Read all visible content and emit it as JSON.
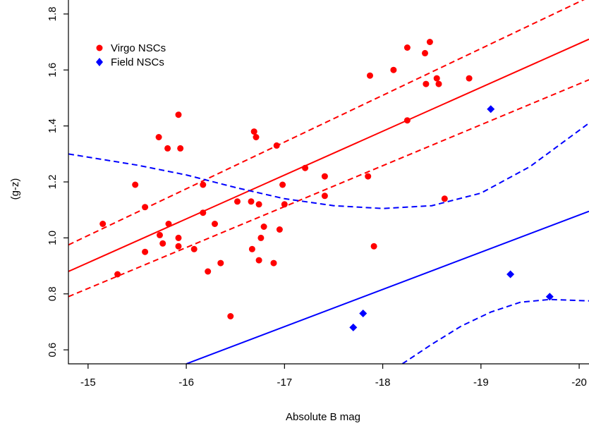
{
  "chart_data": {
    "type": "scatter",
    "title": "",
    "xlabel": "Absolute B mag",
    "ylabel": "(g-z)",
    "xlim": [
      -14.8,
      -20.1
    ],
    "ylim": [
      0.55,
      1.85
    ],
    "x_reversed": true,
    "xticks": [
      -15,
      -16,
      -17,
      -18,
      -19,
      -20
    ],
    "yticks": [
      0.6,
      0.8,
      1.0,
      1.2,
      1.4,
      1.6,
      1.8
    ],
    "xtick_labels": [
      "-15",
      "-16",
      "-17",
      "-18",
      "-19",
      "-20"
    ],
    "ytick_labels": [
      "0.6",
      "0.8",
      "1.0",
      "1.2",
      "1.4",
      "1.6",
      "1.8"
    ],
    "grid": false,
    "legend_position": "top-left",
    "series": [
      {
        "name": "Virgo NSCs",
        "marker": "circle",
        "color": "#ff0000",
        "points": [
          [
            -15.15,
            1.05
          ],
          [
            -15.3,
            0.87
          ],
          [
            -15.48,
            1.19
          ],
          [
            -15.58,
            1.11
          ],
          [
            -15.58,
            0.95
          ],
          [
            -15.72,
            1.36
          ],
          [
            -15.73,
            1.01
          ],
          [
            -15.76,
            0.98
          ],
          [
            -15.81,
            1.32
          ],
          [
            -15.82,
            1.05
          ],
          [
            -15.92,
            1.44
          ],
          [
            -15.94,
            1.32
          ],
          [
            -15.92,
            1.0
          ],
          [
            -15.92,
            0.97
          ],
          [
            -16.08,
            0.96
          ],
          [
            -16.17,
            1.19
          ],
          [
            -16.17,
            1.09
          ],
          [
            -16.22,
            0.88
          ],
          [
            -16.29,
            1.05
          ],
          [
            -16.35,
            0.91
          ],
          [
            -16.45,
            0.72
          ],
          [
            -16.52,
            1.13
          ],
          [
            -16.66,
            1.13
          ],
          [
            -16.67,
            0.96
          ],
          [
            -16.69,
            1.38
          ],
          [
            -16.71,
            1.36
          ],
          [
            -16.74,
            1.12
          ],
          [
            -16.74,
            0.92
          ],
          [
            -16.76,
            1.0
          ],
          [
            -16.79,
            1.04
          ],
          [
            -16.89,
            0.91
          ],
          [
            -16.92,
            1.33
          ],
          [
            -16.95,
            1.03
          ],
          [
            -16.98,
            1.19
          ],
          [
            -17.0,
            1.12
          ],
          [
            -17.21,
            1.25
          ],
          [
            -17.41,
            1.22
          ],
          [
            -17.41,
            1.15
          ],
          [
            -17.85,
            1.22
          ],
          [
            -17.87,
            1.58
          ],
          [
            -17.91,
            0.97
          ],
          [
            -18.11,
            1.6
          ],
          [
            -18.25,
            1.68
          ],
          [
            -18.25,
            1.42
          ],
          [
            -18.43,
            1.66
          ],
          [
            -18.44,
            1.55
          ],
          [
            -18.48,
            1.7
          ],
          [
            -18.55,
            1.57
          ],
          [
            -18.57,
            1.55
          ],
          [
            -18.63,
            1.14
          ],
          [
            -18.88,
            1.57
          ]
        ]
      },
      {
        "name": "Field NSCs",
        "marker": "diamond",
        "color": "#0000ff",
        "points": [
          [
            -17.7,
            0.68
          ],
          [
            -17.8,
            0.73
          ],
          [
            -19.1,
            1.46
          ],
          [
            -19.3,
            0.87
          ],
          [
            -19.7,
            0.79
          ]
        ]
      }
    ],
    "fit_lines": [
      {
        "series": "Virgo NSCs",
        "role": "fit",
        "style": "solid",
        "color": "#ff0000",
        "points": [
          [
            -14.8,
            0.88
          ],
          [
            -20.1,
            1.71
          ]
        ]
      },
      {
        "series": "Virgo NSCs",
        "role": "upper-bound",
        "style": "dashed",
        "color": "#ff0000",
        "points": [
          [
            -14.8,
            0.975
          ],
          [
            -20.1,
            1.86
          ]
        ]
      },
      {
        "series": "Virgo NSCs",
        "role": "lower-bound",
        "style": "dashed",
        "color": "#ff0000",
        "points": [
          [
            -14.8,
            0.79
          ],
          [
            -20.1,
            1.565
          ]
        ]
      },
      {
        "series": "Field NSCs",
        "role": "fit",
        "style": "solid",
        "color": "#0000ff",
        "points": [
          [
            -16.0,
            0.55
          ],
          [
            -20.1,
            1.095
          ]
        ]
      },
      {
        "series": "Field NSCs",
        "role": "upper-bound",
        "style": "dashed",
        "color": "#0000ff",
        "points": [
          [
            -14.8,
            1.3
          ],
          [
            -15.5,
            1.26
          ],
          [
            -16.0,
            1.225
          ],
          [
            -16.5,
            1.18
          ],
          [
            -17.0,
            1.14
          ],
          [
            -17.5,
            1.115
          ],
          [
            -18.0,
            1.105
          ],
          [
            -18.5,
            1.115
          ],
          [
            -19.0,
            1.16
          ],
          [
            -19.5,
            1.255
          ],
          [
            -20.1,
            1.41
          ]
        ]
      },
      {
        "series": "Field NSCs",
        "role": "lower-bound",
        "style": "dashed",
        "color": "#0000ff",
        "points": [
          [
            -18.2,
            0.55
          ],
          [
            -18.5,
            0.62
          ],
          [
            -18.8,
            0.685
          ],
          [
            -19.1,
            0.735
          ],
          [
            -19.4,
            0.77
          ],
          [
            -19.7,
            0.78
          ],
          [
            -20.1,
            0.775
          ]
        ]
      }
    ]
  }
}
